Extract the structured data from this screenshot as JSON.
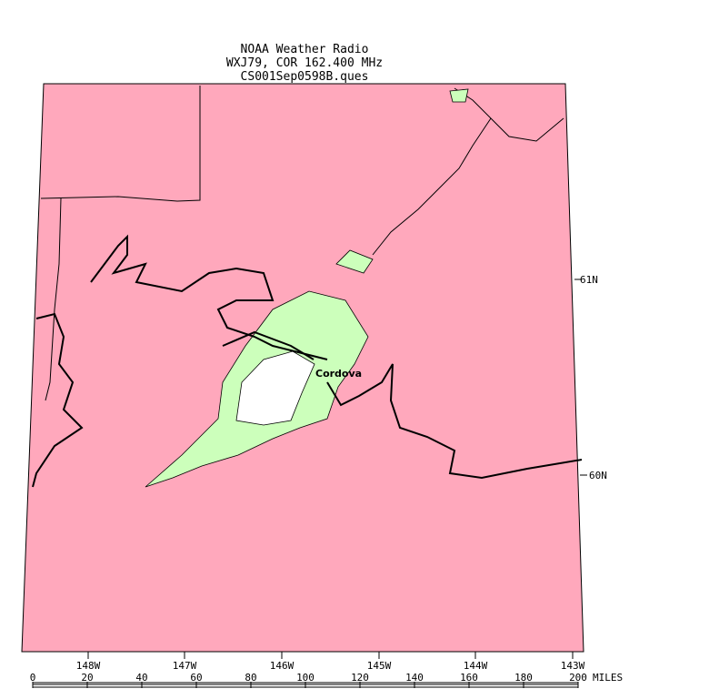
{
  "title": {
    "lines": [
      "NOAA Weather Radio",
      "WXJ79, COR 162.400 MHz",
      "CS001Sep0598B.ques"
    ]
  },
  "map": {
    "latitude_labels": [
      "61N",
      "60N"
    ],
    "longitude_labels": [
      "148W",
      "147W",
      "146W",
      "145W",
      "144W",
      "143W"
    ],
    "place_labels": [
      "Cordova"
    ]
  },
  "scale": {
    "labels": [
      "0",
      "20",
      "40",
      "60",
      "80",
      "100",
      "120",
      "140",
      "160",
      "180",
      "200"
    ],
    "unit": "MILES"
  }
}
